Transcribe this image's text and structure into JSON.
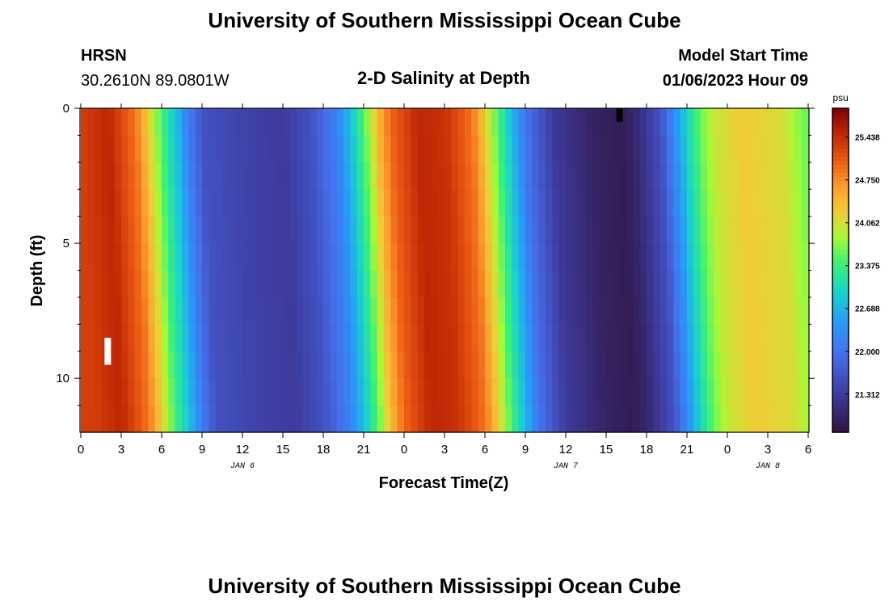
{
  "header": {
    "title": "University of Southern Mississippi Ocean Cube",
    "station": "HRSN",
    "location": "30.2610N  89.0801W",
    "subtitle": "2-D Salinity at Depth",
    "model_start_label": "Model Start Time",
    "model_start_value": "01/06/2023 Hour 09"
  },
  "footer": {
    "title": "University of Southern Mississippi Ocean Cube"
  },
  "chart_data": {
    "type": "heatmap",
    "title": "2-D Salinity at Depth",
    "xlabel": "Forecast Time(Z)",
    "ylabel": "Depth (ft)",
    "x_tick_labels": [
      "0",
      "3",
      "6",
      "9",
      "12",
      "15",
      "18",
      "21",
      "0",
      "3",
      "6",
      "9",
      "12",
      "15",
      "18",
      "21",
      "0",
      "3",
      "6"
    ],
    "x_tick_hours": [
      0,
      3,
      6,
      9,
      12,
      15,
      18,
      21,
      24,
      27,
      30,
      33,
      36,
      39,
      42,
      45,
      48,
      51,
      54
    ],
    "date_labels": [
      {
        "label": "JAN 6",
        "hour": 12
      },
      {
        "label": "JAN 7",
        "hour": 36
      },
      {
        "label": "JAN 8",
        "hour": 51
      }
    ],
    "xlim": [
      0,
      54
    ],
    "ylim": [
      12,
      0
    ],
    "y_tick_labels": [
      "0",
      "5",
      "10"
    ],
    "y_tick_values": [
      0,
      5,
      10
    ],
    "y_minor_ticks": [
      1,
      2,
      3,
      4,
      6,
      7,
      8,
      9,
      11
    ],
    "colorbar": {
      "unit": "psu",
      "ticks": [
        "25.438",
        "24.750",
        "24.062",
        "23.375",
        "22.688",
        "22.000",
        "21.312"
      ],
      "tick_values": [
        25.438,
        24.75,
        24.062,
        23.375,
        22.688,
        22.0,
        21.312
      ],
      "range": [
        20.7,
        25.9
      ]
    },
    "salinity_keypoints": [
      {
        "hour": 0,
        "value": 25.3
      },
      {
        "hour": 2,
        "value": 25.5
      },
      {
        "hour": 4,
        "value": 24.9
      },
      {
        "hour": 5,
        "value": 24.2
      },
      {
        "hour": 6,
        "value": 23.4
      },
      {
        "hour": 7,
        "value": 22.8
      },
      {
        "hour": 8,
        "value": 22.1
      },
      {
        "hour": 9,
        "value": 21.6
      },
      {
        "hour": 12,
        "value": 21.4
      },
      {
        "hour": 15,
        "value": 21.3
      },
      {
        "hour": 17,
        "value": 21.6
      },
      {
        "hour": 19,
        "value": 22.2
      },
      {
        "hour": 20,
        "value": 22.8
      },
      {
        "hour": 21,
        "value": 23.5
      },
      {
        "hour": 22,
        "value": 24.4
      },
      {
        "hour": 23,
        "value": 25.0
      },
      {
        "hour": 25,
        "value": 25.5
      },
      {
        "hour": 27,
        "value": 25.4
      },
      {
        "hour": 29,
        "value": 24.9
      },
      {
        "hour": 30,
        "value": 24.2
      },
      {
        "hour": 31,
        "value": 23.4
      },
      {
        "hour": 32,
        "value": 22.7
      },
      {
        "hour": 33,
        "value": 22.0
      },
      {
        "hour": 35,
        "value": 21.3
      },
      {
        "hour": 38,
        "value": 20.95
      },
      {
        "hour": 40,
        "value": 20.85
      },
      {
        "hour": 41,
        "value": 21.0
      },
      {
        "hour": 43,
        "value": 21.6
      },
      {
        "hour": 44,
        "value": 22.3
      },
      {
        "hour": 45,
        "value": 23.0
      },
      {
        "hour": 46,
        "value": 23.6
      },
      {
        "hour": 47,
        "value": 24.0
      },
      {
        "hour": 49,
        "value": 24.25
      },
      {
        "hour": 52,
        "value": 24.1
      },
      {
        "hour": 53,
        "value": 23.8
      },
      {
        "hour": 54,
        "value": 23.5
      }
    ],
    "markers": [
      {
        "name": "marker-white",
        "hour": 2,
        "depth_top": 8.5,
        "depth_bottom": 9.5,
        "color": "#ffffff"
      },
      {
        "name": "marker-black",
        "hour": 40,
        "depth_top": 0.0,
        "depth_bottom": 0.5,
        "color": "#000000"
      }
    ]
  }
}
